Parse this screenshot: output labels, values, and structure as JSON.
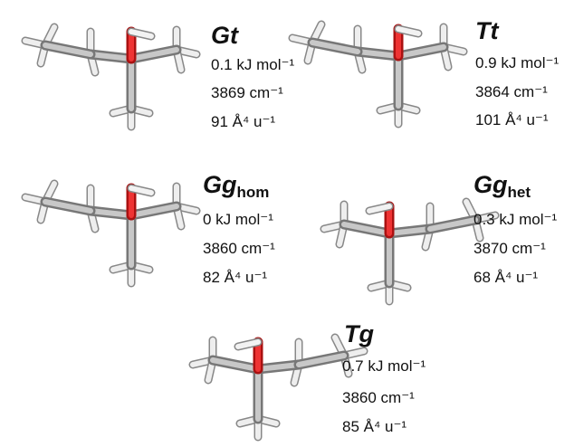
{
  "conformers": [
    {
      "name": "Gt",
      "energy": "0.1 kJ mol⁻¹",
      "frequency": "3869 cm⁻¹",
      "activity": "91 Å⁴ u⁻¹"
    },
    {
      "name": "Tt",
      "energy": "0.9 kJ mol⁻¹",
      "frequency": "3864 cm⁻¹",
      "activity": "101 Å⁴ u⁻¹"
    },
    {
      "name": "Gg",
      "sub": "hom",
      "energy": "0 kJ mol⁻¹",
      "frequency": "3860 cm⁻¹",
      "activity": "82 Å⁴ u⁻¹"
    },
    {
      "name": "Gg",
      "sub": "het",
      "energy": "0.3 kJ mol⁻¹",
      "frequency": "3870 cm⁻¹",
      "activity": "68 Å⁴ u⁻¹"
    },
    {
      "name": "Tg",
      "energy": "0.7 kJ mol⁻¹",
      "frequency": "3860 cm⁻¹",
      "activity": "85 Å⁴ u⁻¹"
    }
  ]
}
